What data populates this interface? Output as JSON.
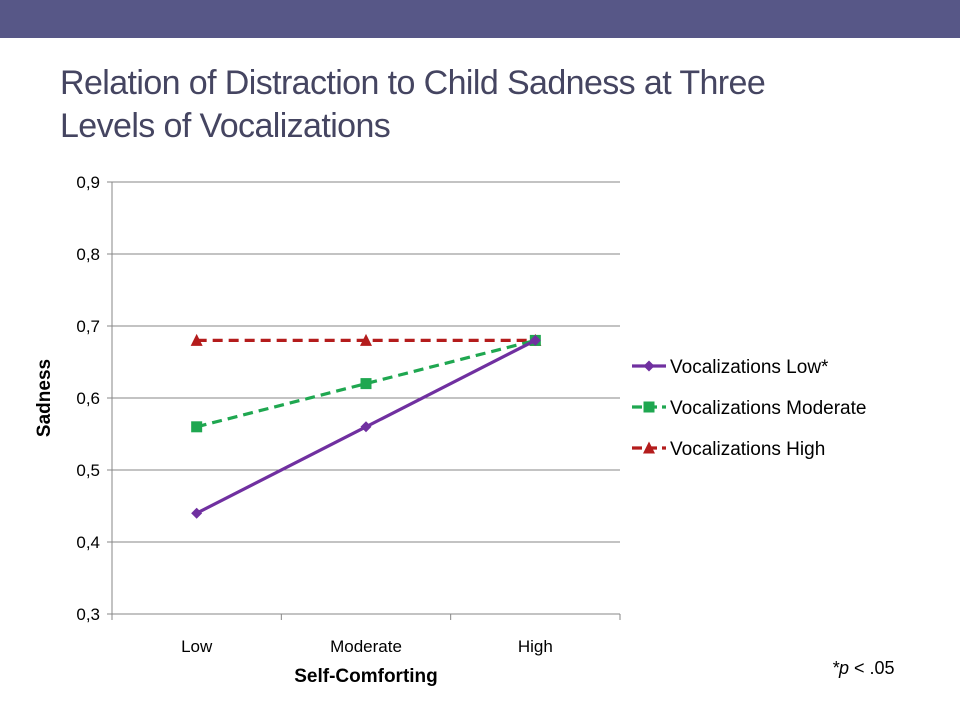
{
  "slide": {
    "title_line1": "Relation of Distraction to Child Sadness at Three",
    "title_line2": "Levels of Vocalizations",
    "footnote_star_p": "*p",
    "footnote_rest": " < .05",
    "accent_color": "#575787"
  },
  "chart_data": {
    "type": "line",
    "xlabel": "Self-Comforting",
    "ylabel": "Sadness",
    "categories": [
      "Low",
      "Moderate",
      "High"
    ],
    "ylim": [
      0.3,
      0.9
    ],
    "yticks": [
      "0,3",
      "0,4",
      "0,5",
      "0,6",
      "0,7",
      "0,8",
      "0,9"
    ],
    "ytick_values": [
      0.3,
      0.4,
      0.5,
      0.6,
      0.7,
      0.8,
      0.9
    ],
    "grid": true,
    "legend_position": "right",
    "series": [
      {
        "name": "Vocalizations Low*",
        "values": [
          0.44,
          0.56,
          0.68
        ],
        "color": "#7030a0",
        "marker": "diamond",
        "dash": "solid"
      },
      {
        "name": "Vocalizations Moderate",
        "values": [
          0.56,
          0.62,
          0.68
        ],
        "color": "#1fa750",
        "marker": "square",
        "dash": "dashed"
      },
      {
        "name": "Vocalizations High",
        "values": [
          0.68,
          0.68,
          0.68
        ],
        "color": "#b41c1c",
        "marker": "triangle",
        "dash": "dashed"
      }
    ]
  }
}
